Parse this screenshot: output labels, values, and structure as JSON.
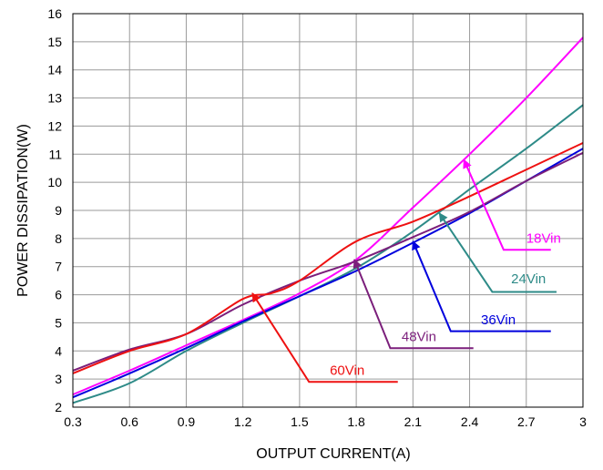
{
  "chart_data": {
    "type": "line",
    "title": "",
    "xlabel": "OUTPUT CURRENT(A)",
    "ylabel": "POWER DISSIPATION(W)",
    "xlim": [
      0.3,
      3
    ],
    "ylim": [
      2,
      16
    ],
    "xticks": [
      0.3,
      0.6,
      0.9,
      1.2,
      1.5,
      1.8,
      2.1,
      2.4,
      2.7,
      3
    ],
    "xtick_labels": [
      "0.3",
      "0.6",
      "0.9",
      "1.2",
      "1.5",
      "1.8",
      "2.1",
      "2.4",
      "2.7",
      "3"
    ],
    "yticks": [
      2,
      3,
      4,
      5,
      6,
      7,
      8,
      9,
      10,
      11,
      12,
      13,
      14,
      15,
      16
    ],
    "ytick_labels": [
      "2",
      "3",
      "4",
      "5",
      "6",
      "7",
      "8",
      "9",
      "10",
      "11",
      "12",
      "13",
      "14",
      "15",
      "16"
    ],
    "grid": true,
    "series": [
      {
        "name": "18Vin",
        "color": "#ff00ff",
        "x": [
          0.3,
          0.6,
          0.9,
          1.2,
          1.5,
          1.8,
          2.1,
          2.4,
          2.7,
          3.0
        ],
        "y": [
          2.45,
          3.3,
          4.2,
          5.1,
          6.05,
          7.25,
          9.1,
          11.0,
          13.0,
          15.15
        ],
        "callout": {
          "text": "18Vin",
          "arrow_tip": [
            2.37,
            10.8
          ],
          "elbow": [
            2.58,
            7.6
          ],
          "line_end": [
            2.83,
            7.6
          ],
          "text_at": [
            2.7,
            7.85
          ]
        }
      },
      {
        "name": "24Vin",
        "color": "#2e8b88",
        "x": [
          0.3,
          0.6,
          0.9,
          1.2,
          1.5,
          1.8,
          2.1,
          2.4,
          2.7,
          3.0
        ],
        "y": [
          2.15,
          2.85,
          4.0,
          5.0,
          5.95,
          6.95,
          8.25,
          9.75,
          11.2,
          12.75
        ],
        "callout": {
          "text": "24Vin",
          "arrow_tip": [
            2.24,
            8.9
          ],
          "elbow": [
            2.52,
            6.1
          ],
          "line_end": [
            2.86,
            6.1
          ],
          "text_at": [
            2.62,
            6.4
          ]
        }
      },
      {
        "name": "36Vin",
        "color": "#0000dd",
        "x": [
          0.3,
          0.6,
          0.9,
          1.2,
          1.5,
          1.8,
          2.1,
          2.4,
          2.7,
          3.0
        ],
        "y": [
          2.35,
          3.2,
          4.1,
          5.05,
          5.95,
          6.85,
          7.85,
          8.9,
          10.05,
          11.2
        ],
        "callout": {
          "text": "36Vin",
          "arrow_tip": [
            2.1,
            7.9
          ],
          "elbow": [
            2.3,
            4.7
          ],
          "line_end": [
            2.83,
            4.7
          ],
          "text_at": [
            2.46,
            4.95
          ]
        }
      },
      {
        "name": "48Vin",
        "color": "#7b1f7b",
        "x": [
          0.3,
          0.6,
          0.9,
          1.2,
          1.5,
          1.8,
          2.1,
          2.4,
          2.7,
          3.0
        ],
        "y": [
          3.3,
          4.05,
          4.6,
          5.65,
          6.5,
          7.2,
          8.05,
          8.95,
          10.05,
          11.05
        ],
        "callout": {
          "text": "48Vin",
          "arrow_tip": [
            1.79,
            7.25
          ],
          "elbow": [
            1.98,
            4.1
          ],
          "line_end": [
            2.42,
            4.1
          ],
          "text_at": [
            2.04,
            4.35
          ]
        }
      },
      {
        "name": "60Vin",
        "color": "#ee1111",
        "x": [
          0.3,
          0.6,
          0.9,
          1.2,
          1.35,
          1.5,
          1.8,
          2.1,
          2.4,
          2.7,
          3.0
        ],
        "y": [
          3.2,
          4.0,
          4.6,
          5.85,
          6.05,
          6.5,
          7.9,
          8.6,
          9.5,
          10.45,
          11.4
        ],
        "callout": {
          "text": "60Vin",
          "arrow_tip": [
            1.25,
            6.05
          ],
          "elbow": [
            1.55,
            2.9
          ],
          "line_end": [
            2.02,
            2.9
          ],
          "text_at": [
            1.66,
            3.15
          ]
        }
      }
    ]
  }
}
